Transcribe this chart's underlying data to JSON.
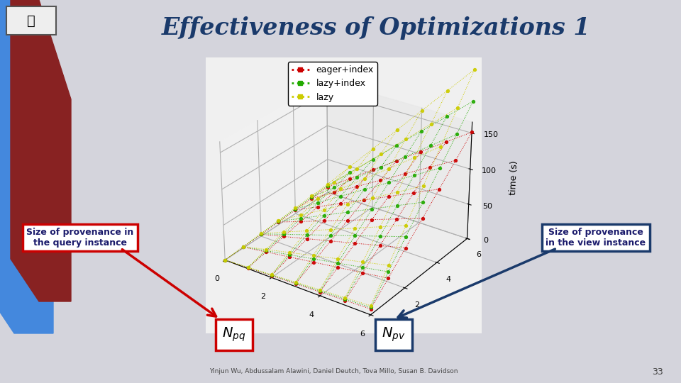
{
  "title": "Effectiveness of Optimizations 1",
  "title_color": "#1a3a6b",
  "title_fontsize": 24,
  "bg_color": "#d4d4dc",
  "plot_bg": "#f0f0f0",
  "ylabel": "time (s)",
  "yticks": [
    0,
    50,
    100,
    150
  ],
  "xticks_vals": [
    0,
    2000000,
    4000000,
    6000000
  ],
  "xticks_labels": [
    "0",
    "2",
    "4",
    "6"
  ],
  "legend_labels": [
    "eager+index",
    "lazy+index",
    "lazy"
  ],
  "legend_colors": [
    "#cc0000",
    "#22aa00",
    "#cccc00"
  ],
  "left_box_text": "Size of provenance in\nthe query instance",
  "right_box_text": "Size of provenance\nin the view instance",
  "footer_text": "Yinjun Wu, Abdussalam Alawini, Daniel Deutch, Tova Millo, Susan B. Davidson",
  "slide_number": "33",
  "npq_box_color": "#cc0000",
  "npv_box_color": "#1a3a6b",
  "arrow_red_color": "#cc0000",
  "arrow_blue_color": "#1a3a6b",
  "blue_bar_color": "#4488dd",
  "red_bar_color": "#882222"
}
